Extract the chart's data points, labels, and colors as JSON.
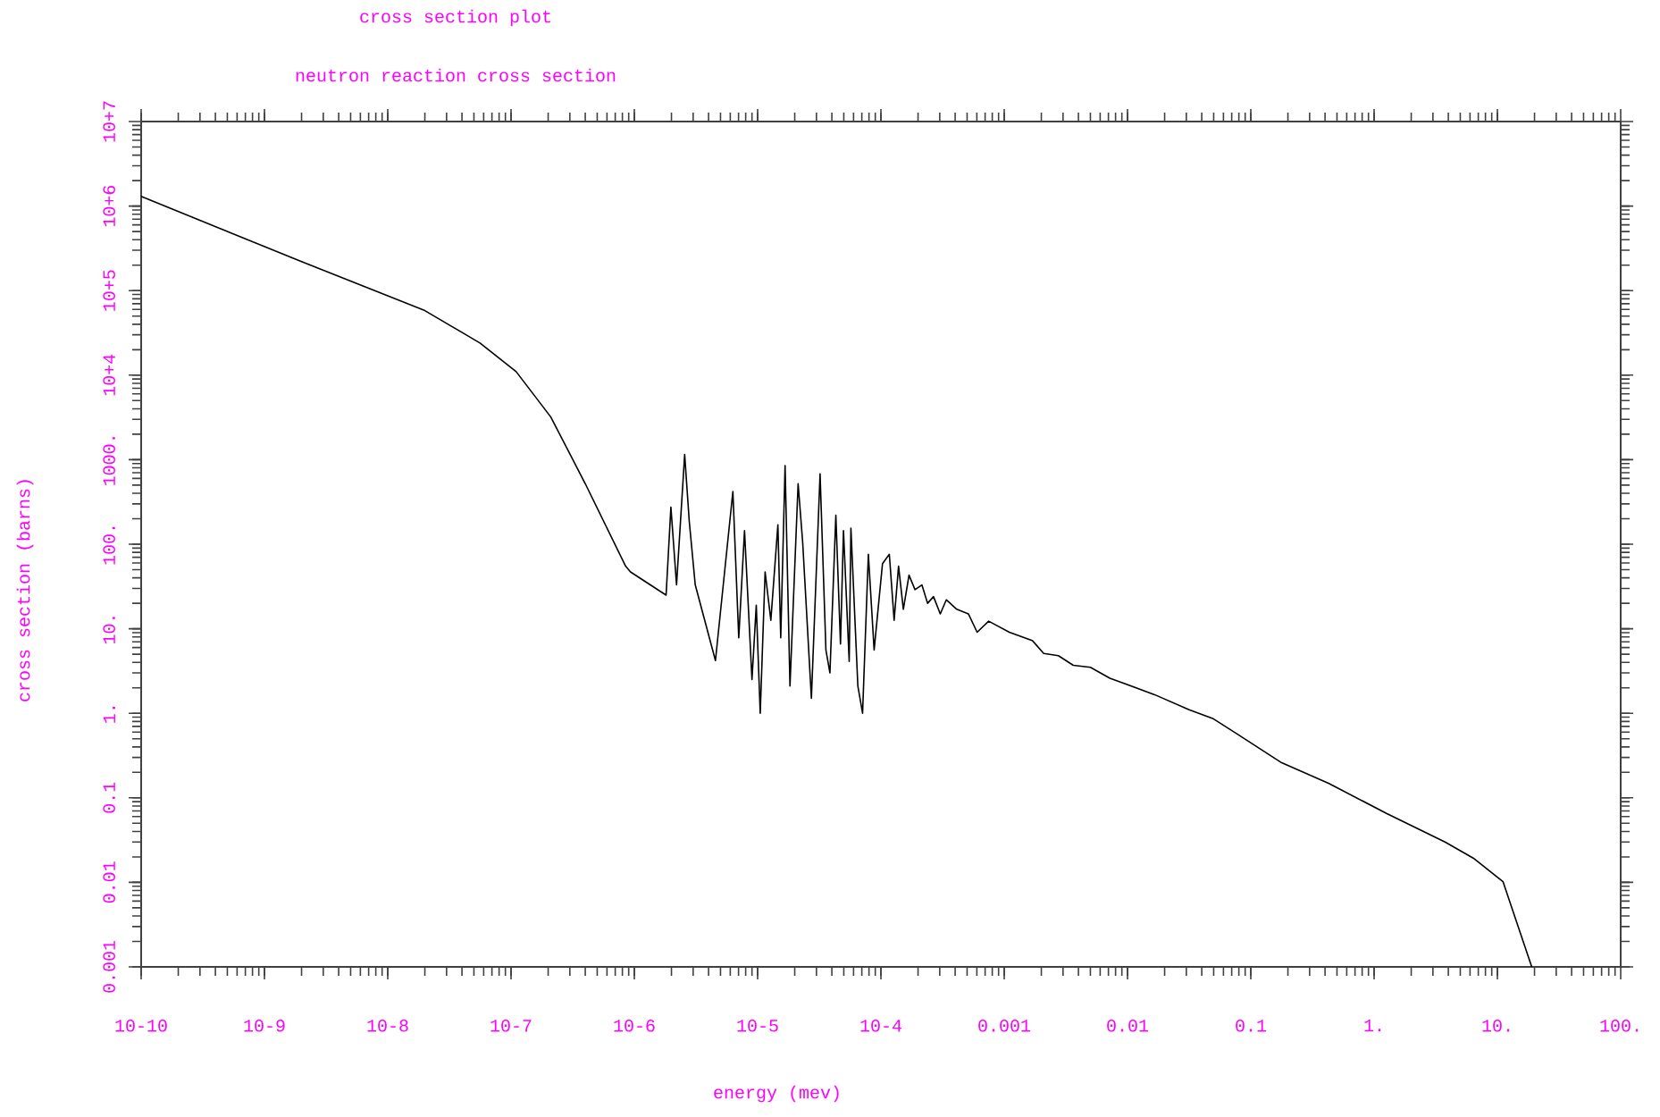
{
  "chart_data": {
    "type": "line",
    "title": "cross section plot",
    "subtitle": "neutron reaction cross section",
    "xlabel": "energy (mev)",
    "ylabel": "cross section (barns)",
    "log": "xy",
    "color": "#000000",
    "x": [
      1e-10,
      2e-09,
      2e-08,
      5.6e-08,
      1.1e-07,
      2.1e-07,
      4e-07,
      8.5e-07,
      9.3e-07,
      1.81e-06,
      1.98e-06,
      2.2e-06,
      2.56e-06,
      2.79e-06,
      3.12e-06,
      4.55e-06,
      6.3e-06,
      7.03e-06,
      7.83e-06,
      9e-06,
      9.75e-06,
      1.05e-05,
      1.15e-05,
      1.28e-05,
      1.46e-05,
      1.54e-05,
      1.67e-05,
      1.83e-05,
      2.13e-05,
      2.32e-05,
      2.73e-05,
      3.21e-05,
      3.58e-05,
      3.86e-05,
      4.31e-05,
      4.7e-05,
      4.97e-05,
      5.53e-05,
      5.71e-05,
      6.5e-05,
      7.1e-05,
      7.91e-05,
      8.81e-05,
      0.000103,
      0.000117,
      0.000128,
      0.000139,
      0.000152,
      0.000169,
      0.000189,
      0.000215,
      0.000239,
      0.000267,
      0.000303,
      0.000339,
      0.000412,
      0.000512,
      0.000603,
      0.000748,
      0.0011,
      0.0017,
      0.00209,
      0.00275,
      0.00363,
      0.005,
      0.0072,
      0.0166,
      0.0316,
      0.049,
      0.076,
      0.178,
      0.43,
      1.27,
      3.76,
      6.5,
      11.1,
      19
    ],
    "values": [
      1300000.0,
      220000.0,
      58000.0,
      24000.0,
      11000.0,
      3200.0,
      520,
      55,
      47,
      25,
      275,
      33,
      1150,
      186,
      33,
      4.2,
      420,
      7.8,
      145,
      2.5,
      19,
      1.0,
      47,
      12.6,
      170,
      7.8,
      850,
      2.1,
      520,
      105,
      1.5,
      680,
      5.6,
      3.0,
      220,
      6.6,
      145,
      4.1,
      155,
      2.1,
      1.0,
      76,
      5.6,
      59,
      76,
      12.6,
      55,
      17,
      43,
      29,
      33,
      20,
      24,
      15,
      22,
      17,
      15,
      9.1,
      12.3,
      9.1,
      7.2,
      5.1,
      4.8,
      3.7,
      3.5,
      2.6,
      1.66,
      1.1,
      0.87,
      0.58,
      0.26,
      0.148,
      0.065,
      0.03,
      0.019,
      0.0102,
      0.001
    ],
    "xlim": [
      1e-10,
      100
    ],
    "ylim": [
      0.001,
      10000000.0
    ],
    "xticks": [
      {
        "value": 1e-10,
        "label": "10-10"
      },
      {
        "value": 1e-09,
        "label": "10-9"
      },
      {
        "value": 1e-08,
        "label": "10-8"
      },
      {
        "value": 1e-07,
        "label": "10-7"
      },
      {
        "value": 1e-06,
        "label": "10-6"
      },
      {
        "value": 1e-05,
        "label": "10-5"
      },
      {
        "value": 0.0001,
        "label": "10-4"
      },
      0.001,
      0.01,
      0.1,
      {
        "value": 1,
        "label": "1."
      },
      {
        "value": 10,
        "label": "10."
      },
      {
        "value": 100,
        "label": "100."
      }
    ],
    "yticks": [
      0.001,
      0.01,
      0.1,
      {
        "value": 1,
        "label": "1."
      },
      {
        "value": 10,
        "label": "10."
      },
      {
        "value": 100,
        "label": "100."
      },
      {
        "value": 1000,
        "label": "1000."
      },
      {
        "value": 10000.0,
        "label": "10+4"
      },
      {
        "value": 100000.0,
        "label": "10+5"
      },
      {
        "value": 1000000.0,
        "label": "10+6"
      },
      {
        "value": 10000000.0,
        "label": "10+7"
      }
    ]
  }
}
